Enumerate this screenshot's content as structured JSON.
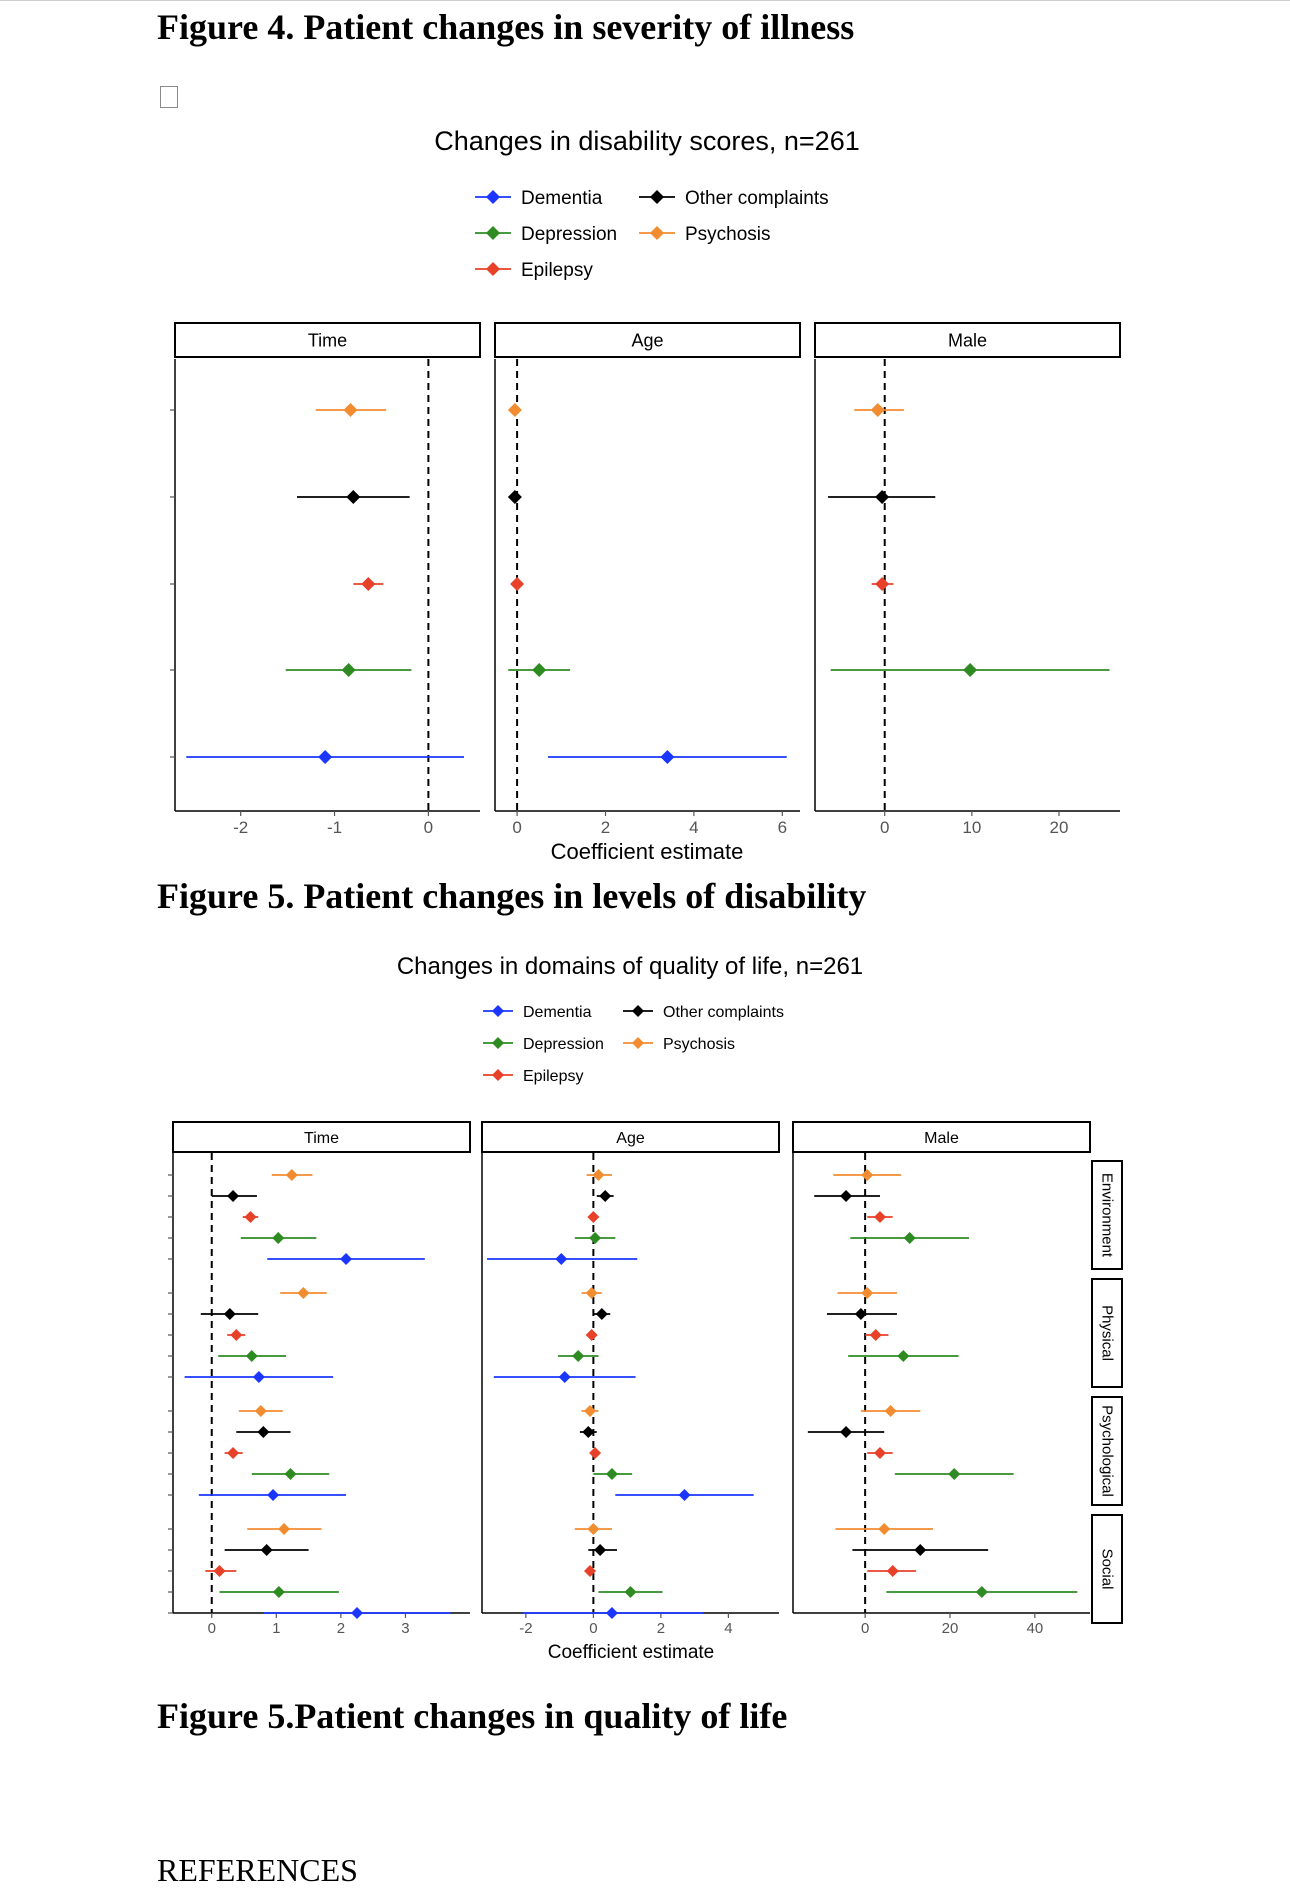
{
  "page": {
    "heading_fig4": "Figure 4. Patient changes in severity of illness",
    "heading_fig5a": "Figure 5. Patient changes in levels of disability",
    "heading_fig5b": "Figure 5.Patient changes in quality of life",
    "references_heading": "REFERENCES"
  },
  "colors": {
    "Dementia": "#1a36ff",
    "Depression": "#2e8b22",
    "Epilepsy": "#e8412a",
    "Other complaints": "#000000",
    "Psychosis": "#f28c30"
  },
  "chart_data": [
    {
      "type": "scatter",
      "subtype": "forest-plot",
      "title": "Changes in disability scores, n=261",
      "xlabel": "Coefficient estimate",
      "legend": [
        "Dementia",
        "Other complaints",
        "Depression",
        "Psychosis",
        "Epilepsy"
      ],
      "row_order": [
        "Dementia",
        "Depression",
        "Epilepsy",
        "Other complaints",
        "Psychosis"
      ],
      "panels": [
        {
          "name": "Time",
          "xlim": [
            -2.7,
            0.55
          ],
          "ticks": [
            -2,
            -1,
            0
          ],
          "points": [
            {
              "group": "Psychosis",
              "est": -0.83,
              "lo": -1.2,
              "hi": -0.45
            },
            {
              "group": "Other complaints",
              "est": -0.8,
              "lo": -1.4,
              "hi": -0.2
            },
            {
              "group": "Epilepsy",
              "est": -0.64,
              "lo": -0.8,
              "hi": -0.48
            },
            {
              "group": "Depression",
              "est": -0.85,
              "lo": -1.52,
              "hi": -0.18
            },
            {
              "group": "Dementia",
              "est": -1.1,
              "lo": -2.58,
              "hi": 0.38
            }
          ]
        },
        {
          "name": "Age",
          "xlim": [
            -0.5,
            6.4
          ],
          "ticks": [
            0,
            2,
            4,
            6
          ],
          "points": [
            {
              "group": "Psychosis",
              "est": -0.05,
              "lo": -0.05,
              "hi": -0.05
            },
            {
              "group": "Other complaints",
              "est": -0.05,
              "lo": -0.05,
              "hi": -0.05
            },
            {
              "group": "Epilepsy",
              "est": 0.0,
              "lo": 0.0,
              "hi": 0.0
            },
            {
              "group": "Depression",
              "est": 0.5,
              "lo": -0.2,
              "hi": 1.2
            },
            {
              "group": "Dementia",
              "est": 3.4,
              "lo": 0.7,
              "hi": 6.1
            }
          ]
        },
        {
          "name": "Male",
          "xlim": [
            -8,
            27
          ],
          "ticks": [
            0,
            10,
            20
          ],
          "points": [
            {
              "group": "Psychosis",
              "est": -0.8,
              "lo": -3.5,
              "hi": 2.2
            },
            {
              "group": "Other complaints",
              "est": -0.3,
              "lo": -6.5,
              "hi": 5.8
            },
            {
              "group": "Epilepsy",
              "est": -0.3,
              "lo": -1.5,
              "hi": 1.0
            },
            {
              "group": "Depression",
              "est": 9.8,
              "lo": -6.2,
              "hi": 25.8
            },
            {
              "group": "Dementia",
              "est": null,
              "lo": null,
              "hi": null
            }
          ]
        }
      ]
    },
    {
      "type": "scatter",
      "subtype": "forest-plot",
      "title": "Changes in domains of quality of life, n=261",
      "xlabel": "Coefficient estimate",
      "legend": [
        "Dementia",
        "Other complaints",
        "Depression",
        "Psychosis",
        "Epilepsy"
      ],
      "row_order": [
        "Dementia",
        "Depression",
        "Epilepsy",
        "Other complaints",
        "Psychosis"
      ],
      "domains": [
        "Environment",
        "Physical",
        "Psychological",
        "Social"
      ],
      "panels": [
        {
          "name": "Time",
          "xlim": [
            -0.6,
            4.0
          ],
          "ticks": [
            0,
            1,
            2,
            3
          ],
          "domains": {
            "Environment": [
              {
                "group": "Psychosis",
                "est": 1.24,
                "lo": 0.93,
                "hi": 1.56
              },
              {
                "group": "Other complaints",
                "est": 0.33,
                "lo": 0.0,
                "hi": 0.7
              },
              {
                "group": "Epilepsy",
                "est": 0.6,
                "lo": 0.48,
                "hi": 0.72
              },
              {
                "group": "Depression",
                "est": 1.03,
                "lo": 0.45,
                "hi": 1.62
              },
              {
                "group": "Dementia",
                "est": 2.08,
                "lo": 0.86,
                "hi": 3.3
              }
            ],
            "Physical": [
              {
                "group": "Psychosis",
                "est": 1.42,
                "lo": 1.06,
                "hi": 1.78
              },
              {
                "group": "Other complaints",
                "est": 0.28,
                "lo": -0.17,
                "hi": 0.72
              },
              {
                "group": "Epilepsy",
                "est": 0.38,
                "lo": 0.24,
                "hi": 0.52
              },
              {
                "group": "Depression",
                "est": 0.62,
                "lo": 0.1,
                "hi": 1.15
              },
              {
                "group": "Dementia",
                "est": 0.73,
                "lo": -0.42,
                "hi": 1.88
              }
            ],
            "Psychological": [
              {
                "group": "Psychosis",
                "est": 0.76,
                "lo": 0.42,
                "hi": 1.1
              },
              {
                "group": "Other complaints",
                "est": 0.8,
                "lo": 0.38,
                "hi": 1.22
              },
              {
                "group": "Epilepsy",
                "est": 0.33,
                "lo": 0.2,
                "hi": 0.48
              },
              {
                "group": "Depression",
                "est": 1.22,
                "lo": 0.62,
                "hi": 1.82
              },
              {
                "group": "Dementia",
                "est": 0.95,
                "lo": -0.2,
                "hi": 2.08
              }
            ],
            "Social": [
              {
                "group": "Psychosis",
                "est": 1.12,
                "lo": 0.55,
                "hi": 1.7
              },
              {
                "group": "Other complaints",
                "est": 0.85,
                "lo": 0.2,
                "hi": 1.5
              },
              {
                "group": "Epilepsy",
                "est": 0.12,
                "lo": -0.1,
                "hi": 0.38
              },
              {
                "group": "Depression",
                "est": 1.04,
                "lo": 0.12,
                "hi": 1.97
              },
              {
                "group": "Dementia",
                "est": 2.25,
                "lo": 0.8,
                "hi": 3.7
              }
            ]
          }
        },
        {
          "name": "Age",
          "xlim": [
            -3.3,
            5.5
          ],
          "ticks": [
            -2,
            0,
            2,
            4
          ],
          "domains": {
            "Environment": [
              {
                "group": "Psychosis",
                "est": 0.15,
                "lo": -0.2,
                "hi": 0.55
              },
              {
                "group": "Other complaints",
                "est": 0.35,
                "lo": 0.1,
                "hi": 0.6
              },
              {
                "group": "Epilepsy",
                "est": 0.0,
                "lo": -0.1,
                "hi": 0.1
              },
              {
                "group": "Depression",
                "est": 0.05,
                "lo": -0.55,
                "hi": 0.65
              },
              {
                "group": "Dementia",
                "est": -0.95,
                "lo": -3.15,
                "hi": 1.3
              }
            ],
            "Physical": [
              {
                "group": "Psychosis",
                "est": -0.05,
                "lo": -0.35,
                "hi": 0.25
              },
              {
                "group": "Other complaints",
                "est": 0.25,
                "lo": 0.0,
                "hi": 0.5
              },
              {
                "group": "Epilepsy",
                "est": -0.05,
                "lo": -0.2,
                "hi": 0.1
              },
              {
                "group": "Depression",
                "est": -0.45,
                "lo": -1.05,
                "hi": 0.15
              },
              {
                "group": "Dementia",
                "est": -0.85,
                "lo": -2.95,
                "hi": 1.25
              }
            ],
            "Psychological": [
              {
                "group": "Psychosis",
                "est": -0.1,
                "lo": -0.35,
                "hi": 0.15
              },
              {
                "group": "Other complaints",
                "est": -0.15,
                "lo": -0.4,
                "hi": 0.1
              },
              {
                "group": "Epilepsy",
                "est": 0.05,
                "lo": -0.05,
                "hi": 0.15
              },
              {
                "group": "Depression",
                "est": 0.55,
                "lo": 0.0,
                "hi": 1.15
              },
              {
                "group": "Dementia",
                "est": 2.7,
                "lo": 0.65,
                "hi": 4.75
              }
            ],
            "Social": [
              {
                "group": "Psychosis",
                "est": 0.0,
                "lo": -0.55,
                "hi": 0.55
              },
              {
                "group": "Other complaints",
                "est": 0.2,
                "lo": -0.15,
                "hi": 0.7
              },
              {
                "group": "Epilepsy",
                "est": -0.1,
                "lo": -0.25,
                "hi": 0.05
              },
              {
                "group": "Depression",
                "est": 1.1,
                "lo": 0.15,
                "hi": 2.05
              },
              {
                "group": "Dementia",
                "est": 0.55,
                "lo": -2.1,
                "hi": 3.25
              }
            ]
          }
        },
        {
          "name": "Male",
          "xlim": [
            -17,
            53
          ],
          "ticks": [
            0,
            20,
            40
          ],
          "domains": {
            "Environment": [
              {
                "group": "Psychosis",
                "est": 0.5,
                "lo": -7.5,
                "hi": 8.5
              },
              {
                "group": "Other complaints",
                "est": -4.5,
                "lo": -12,
                "hi": 3.5
              },
              {
                "group": "Epilepsy",
                "est": 3.5,
                "lo": 0.5,
                "hi": 6.5
              },
              {
                "group": "Depression",
                "est": 10.5,
                "lo": -3.5,
                "hi": 24.5
              },
              {
                "group": "Dementia",
                "est": null,
                "lo": null,
                "hi": null
              }
            ],
            "Physical": [
              {
                "group": "Psychosis",
                "est": 0.5,
                "lo": -6.5,
                "hi": 7.5
              },
              {
                "group": "Other complaints",
                "est": -1.0,
                "lo": -9.0,
                "hi": 7.5
              },
              {
                "group": "Epilepsy",
                "est": 2.5,
                "lo": 0,
                "hi": 5.5
              },
              {
                "group": "Depression",
                "est": 9.0,
                "lo": -4.0,
                "hi": 22.0
              },
              {
                "group": "Dementia",
                "est": null,
                "lo": null,
                "hi": null
              }
            ],
            "Psychological": [
              {
                "group": "Psychosis",
                "est": 6.0,
                "lo": -1.0,
                "hi": 13.0
              },
              {
                "group": "Other complaints",
                "est": -4.5,
                "lo": -13.5,
                "hi": 4.5
              },
              {
                "group": "Epilepsy",
                "est": 3.5,
                "lo": 0.5,
                "hi": 6.5
              },
              {
                "group": "Depression",
                "est": 21.0,
                "lo": 7.0,
                "hi": 35.0
              },
              {
                "group": "Dementia",
                "est": null,
                "lo": null,
                "hi": null
              }
            ],
            "Social": [
              {
                "group": "Psychosis",
                "est": 4.5,
                "lo": -7.0,
                "hi": 16.0
              },
              {
                "group": "Other complaints",
                "est": 13.0,
                "lo": -3.0,
                "hi": 29.0
              },
              {
                "group": "Epilepsy",
                "est": 6.5,
                "lo": 0.5,
                "hi": 12.0
              },
              {
                "group": "Depression",
                "est": 27.5,
                "lo": 5.0,
                "hi": 50.0
              },
              {
                "group": "Dementia",
                "est": null,
                "lo": null,
                "hi": null
              }
            ]
          }
        }
      ]
    }
  ]
}
